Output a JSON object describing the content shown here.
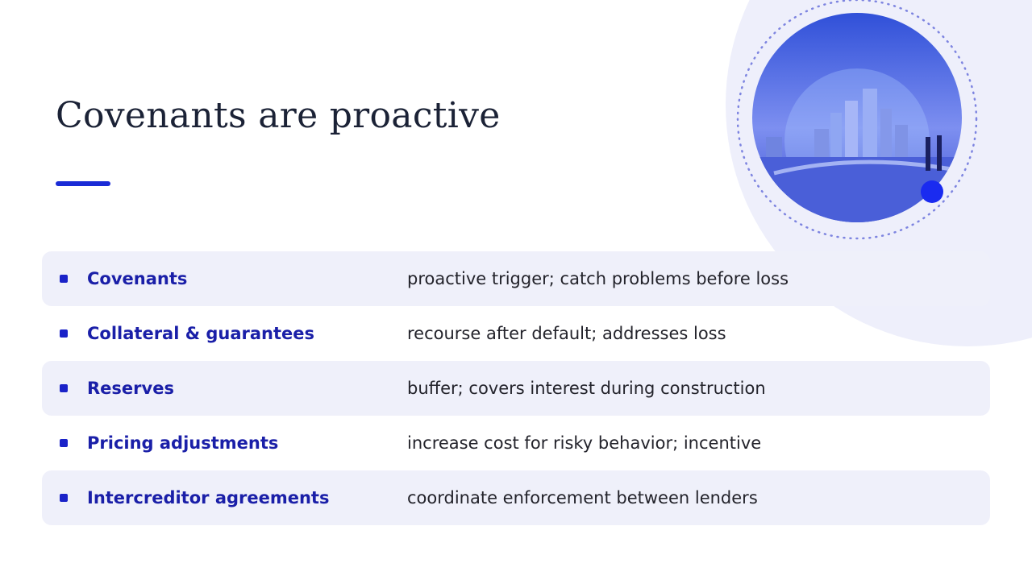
{
  "title": "Covenants are proactive",
  "rows": [
    {
      "term": "Covenants",
      "description": "proactive trigger; catch problems before loss"
    },
    {
      "term": "Collateral & guarantees",
      "description": "recourse after default; addresses loss"
    },
    {
      "term": "Reserves",
      "description": "buffer; covers interest during construction"
    },
    {
      "term": "Pricing adjustments",
      "description": "increase cost for risky behavior; incentive"
    },
    {
      "term": "Intercreditor agreements",
      "description": "coordinate enforcement between lenders"
    }
  ]
}
